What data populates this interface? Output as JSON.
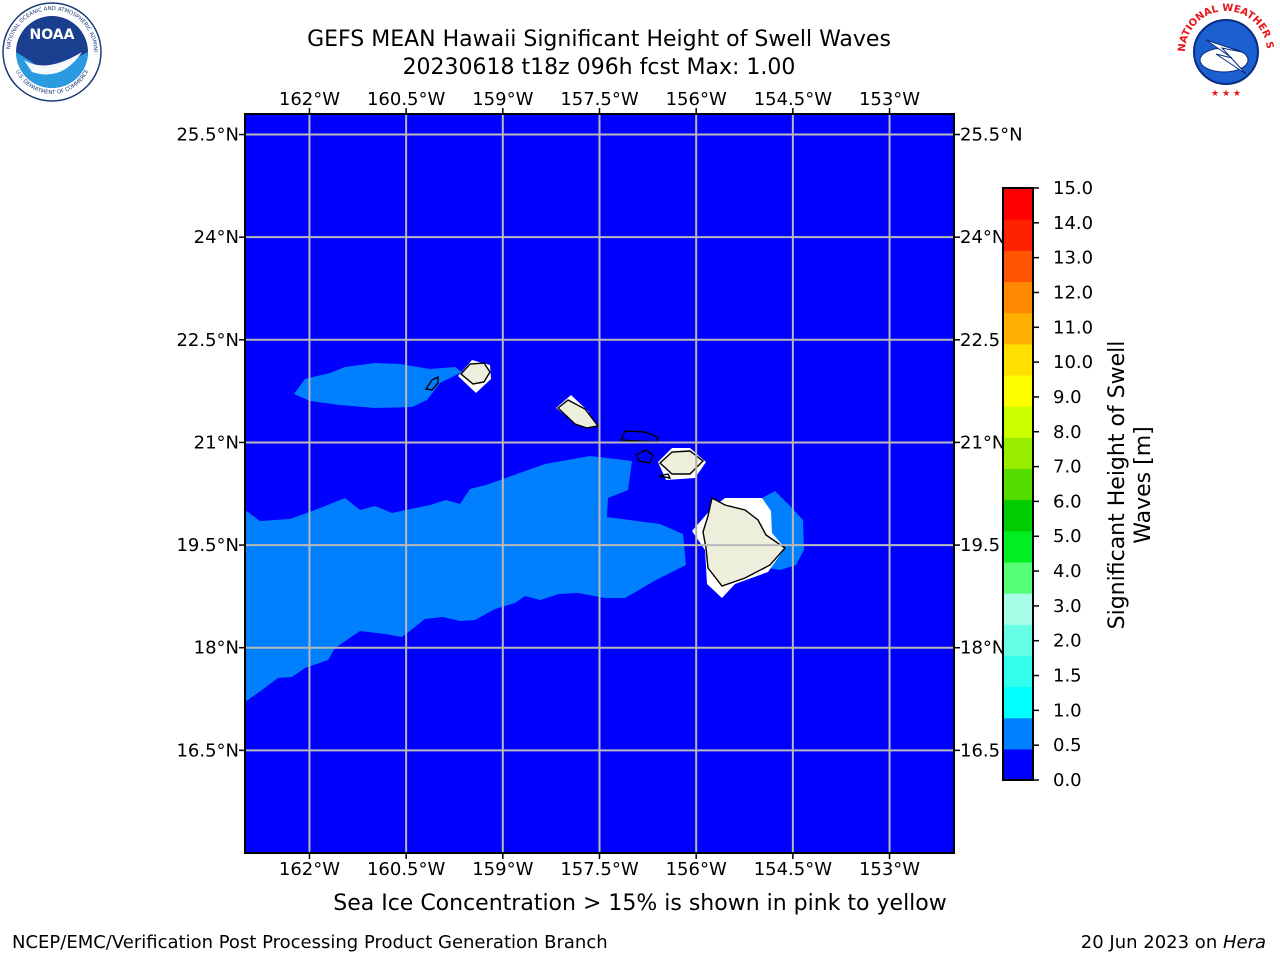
{
  "title": {
    "line1": "GEFS MEAN Hawaii Significant Height of Swell Waves",
    "line2": "20230618 t18z 096h fcst   Max: 1.00"
  },
  "map": {
    "lon_range": [
      -163,
      -152
    ],
    "lat_range": [
      15.0,
      25.8
    ],
    "lon_ticks": [
      "162°W",
      "160.5°W",
      "159°W",
      "157.5°W",
      "156°W",
      "154.5°W",
      "153°W"
    ],
    "lat_ticks": [
      "25.5°N",
      "24°N",
      "22.5°N",
      "21°N",
      "19.5°N",
      "18°N",
      "16.5°N"
    ],
    "lat_ticks_right": [
      "25.5°N",
      "24°N",
      "22.5",
      "21°N",
      "19.5",
      "18°N",
      "16.5"
    ],
    "grid": true,
    "ocean_color": "#0000ff",
    "swell_band_color": "#0080ff",
    "land_color": "#eeeedd"
  },
  "colorbar": {
    "label": "Significant Height of Swell Waves [m]",
    "label_line1": "Significant Height of Swell",
    "label_line2": "Waves [m]",
    "ticks": [
      "15.0",
      "14.0",
      "13.0",
      "12.0",
      "11.0",
      "10.0",
      "9.0",
      "8.0",
      "7.0",
      "6.0",
      "5.0",
      "4.0",
      "3.0",
      "2.0",
      "1.5",
      "1.0",
      "0.5",
      "0.0"
    ],
    "colors": [
      "#0000ff",
      "#0080ff",
      "#00ffff",
      "#33ffee",
      "#66ffe6",
      "#a6ffe6",
      "#55ff77",
      "#00ee22",
      "#00cc00",
      "#55dd00",
      "#99ee00",
      "#ccff00",
      "#ffff00",
      "#ffe000",
      "#ffb000",
      "#ff8800",
      "#ff5500",
      "#ff2200",
      "#ff0000"
    ]
  },
  "note": "Sea Ice Concentration > 15% is shown in pink to yellow",
  "footer": {
    "left": "NCEP/EMC/Verification Post Processing Product Generation Branch",
    "right_prefix": "20 Jun 2023 on ",
    "right_host": "Hera"
  },
  "logos": {
    "noaa_text": "NOAA",
    "noaa_ring": "NATIONAL OCEANIC AND ATMOSPHERIC ADMINISTRATION · U.S. DEPARTMENT OF COMMERCE",
    "nws_ring": "NATIONAL WEATHER SERVICE"
  }
}
